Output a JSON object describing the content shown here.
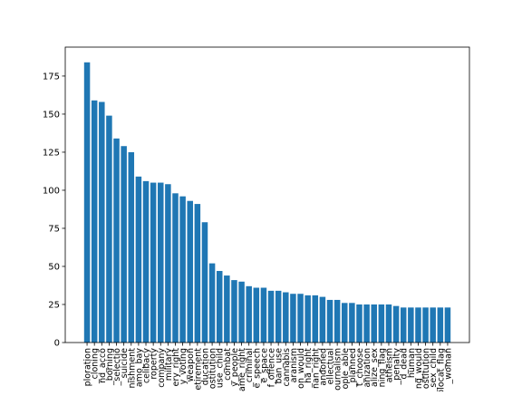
{
  "chart_data": {
    "type": "bar",
    "title": "",
    "xlabel": "",
    "ylabel": "",
    "ylim": [
      0,
      194
    ],
    "yticks": [
      0,
      25,
      50,
      75,
      100,
      125,
      150,
      175
    ],
    "grid": false,
    "bar_color": "#1f77b4",
    "categories": [
      "ploration",
      "_cloning",
      "nd_acco",
      "_borning",
      "_selectio",
      "_suicide",
      "nishment",
      "amo_bay",
      "celibacy",
      "roperty",
      "company",
      "military",
      "ery_right",
      "y_voting",
      "weapon",
      "etirement",
      "ducation",
      "ostitution",
      "use_child",
      "_combat",
      "y_people",
      "ame_right",
      "_criminal",
      "e_speech",
      "e_space",
      "f_offence",
      "ban_use",
      "cannabis",
      "aranism",
      "on_would",
      "_ha_right",
      "nan_right",
      "andoned",
      "ellectual",
      "ournalism",
      "ople_able",
      "_planned",
      "t_choose",
      "anization",
      "alize_sex",
      "ning_flag",
      "atheism",
      "_penalty",
      "d_dead",
      "_human",
      "ng_would",
      "ostitution",
      "_sex_child",
      "olocat_flag",
      "_woman"
    ],
    "values": [
      184,
      159,
      158,
      149,
      134,
      129,
      125,
      109,
      106,
      105,
      105,
      104,
      98,
      96,
      93,
      91,
      79,
      52,
      47,
      44,
      41,
      40,
      37,
      36,
      36,
      34,
      34,
      33,
      32,
      32,
      31,
      31,
      30,
      28,
      28,
      26,
      26,
      25,
      25,
      25,
      25,
      25,
      24,
      23,
      23,
      23,
      23,
      23,
      23,
      23
    ]
  }
}
